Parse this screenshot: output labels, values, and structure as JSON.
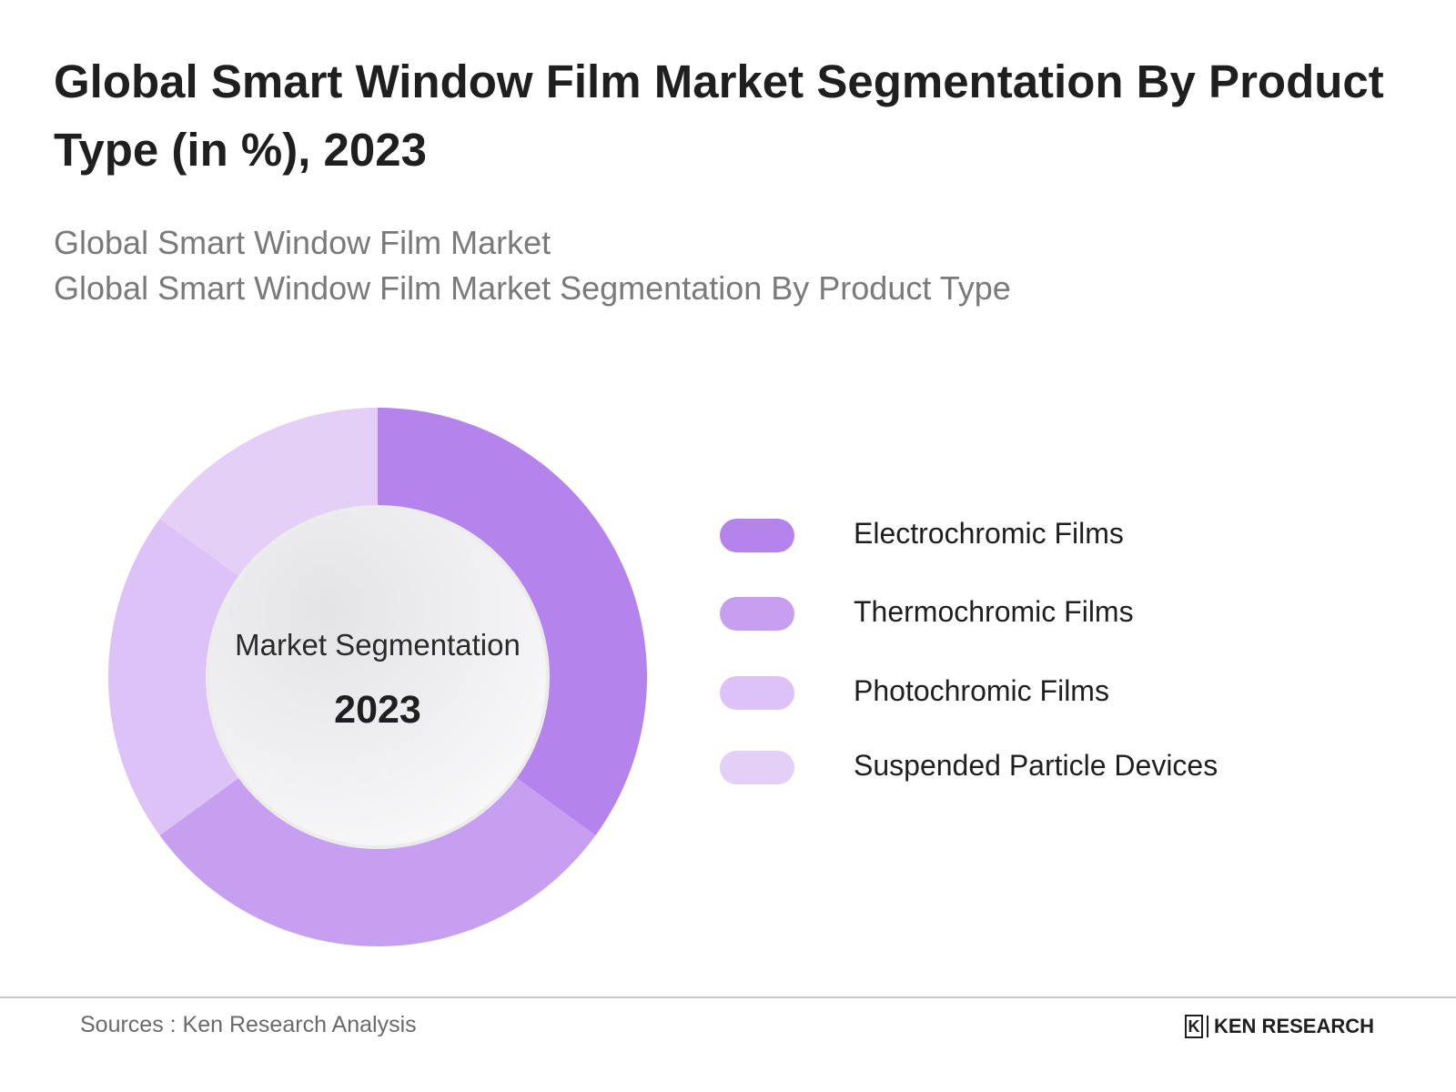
{
  "title": "Global Smart Window Film Market Segmentation By Product Type (in %), 2023",
  "subtitle_lines": [
    "Global Smart Window Film Market",
    "Global Smart Window Film Market Segmentation By Product Type"
  ],
  "center": {
    "label": "Market Segmentation",
    "year": "2023"
  },
  "footer": {
    "source": "Sources : Ken Research Analysis",
    "brand": "KEN RESEARCH",
    "brand_mark": "K"
  },
  "colors": {
    "Electrochromic Films": "#b484ec",
    "Thermochromic Films": "#c79ff0",
    "Photochromic Films": "#dcc2f6",
    "Suspended Particle Devices": "#e4cff7"
  },
  "chart_data": {
    "type": "pie",
    "variant": "donut",
    "title": "Global Smart Window Film Market Segmentation By Product Type (in %), 2023",
    "categories": [
      "Electrochromic Films",
      "Thermochromic Films",
      "Photochromic Films",
      "Suspended Particle Devices"
    ],
    "values": [
      35,
      30,
      20,
      15
    ],
    "unit": "%",
    "legend_position": "right",
    "data_labels": false
  }
}
